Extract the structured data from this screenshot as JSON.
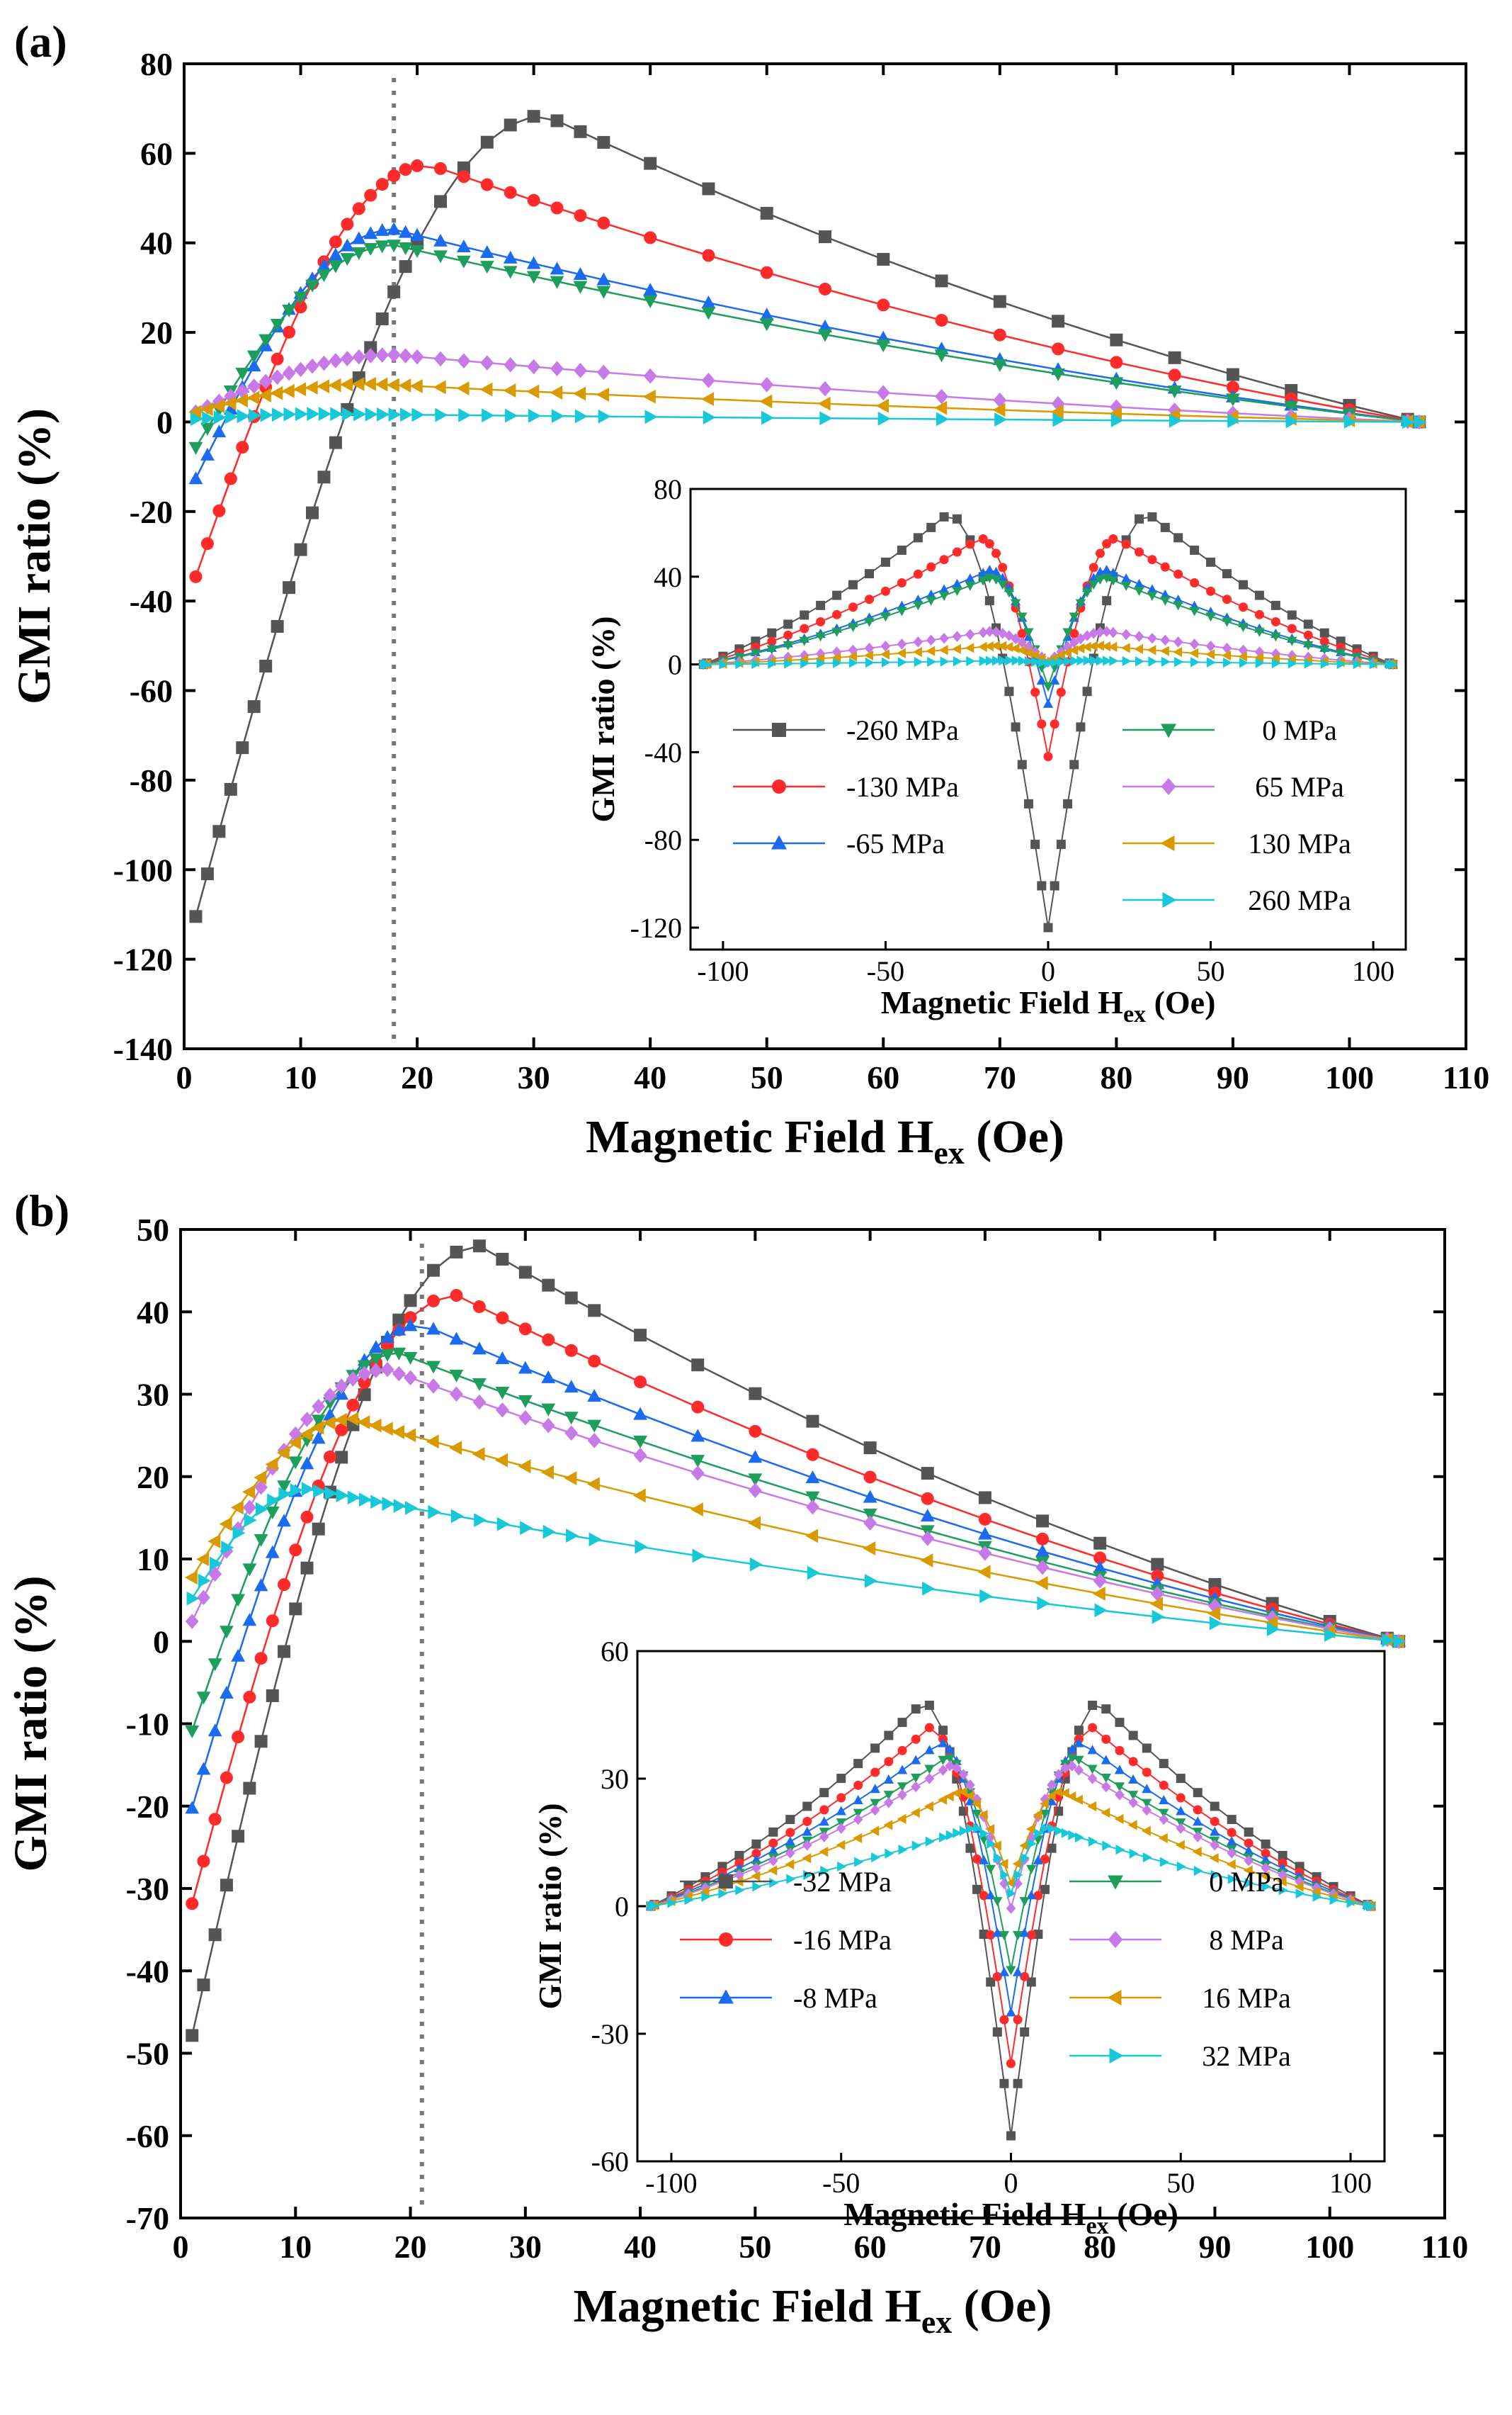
{
  "chart_data": [
    {
      "panel_label": "(a)",
      "type": "line",
      "xlabel": "Magnetic Field H",
      "xlabel_sub": "ex",
      "xlabel_unit": "(Oe)",
      "ylabel": "GMI ratio (%)",
      "xlim": [
        0,
        110
      ],
      "ylim": [
        -140,
        80
      ],
      "x_ticks": [
        "0",
        "10",
        "20",
        "30",
        "40",
        "50",
        "60",
        "70",
        "80",
        "90",
        "100",
        "110"
      ],
      "y_ticks": [
        "80",
        "60",
        "40",
        "20",
        "0",
        "-20",
        "-40",
        "-60",
        "-80",
        "-100",
        "-120",
        "-140"
      ],
      "vline_x": 18,
      "series": [
        {
          "name": "-260 MPa",
          "color": "#555555",
          "marker": "square",
          "peak_x": 31,
          "peak_y": 68.5,
          "start_y": -120
        },
        {
          "name": "-130 MPa",
          "color": "#ff2a2a",
          "marker": "circle",
          "peak_x": 21,
          "peak_y": 57.5,
          "start_y": -42
        },
        {
          "name": "-65 MPa",
          "color": "#1a6bf0",
          "marker": "triangle-up",
          "peak_x": 18,
          "peak_y": 43,
          "start_y": -18
        },
        {
          "name": "0 MPa",
          "color": "#1d9e5b",
          "marker": "triangle-down",
          "peak_x": 18,
          "peak_y": 39.5,
          "start_y": -10
        },
        {
          "name": "65 MPa",
          "color": "#c879e8",
          "marker": "diamond",
          "peak_x": 18,
          "peak_y": 15,
          "start_y": 1
        },
        {
          "name": "130 MPa",
          "color": "#d99a00",
          "marker": "triangle-left",
          "peak_x": 16,
          "peak_y": 8.5,
          "start_y": 1.5
        },
        {
          "name": "260 MPa",
          "color": "#17c8d8",
          "marker": "triangle-right",
          "peak_x": 12,
          "peak_y": 1.8,
          "start_y": 0.5
        }
      ],
      "inset": {
        "xlabel": "Magnetic Field H",
        "xlabel_sub": "ex",
        "xlabel_unit": "(Oe)",
        "ylabel": "GMI ratio (%)",
        "xlim": [
          -110,
          110
        ],
        "ylim": [
          -130,
          80
        ],
        "x_ticks": [
          "-100",
          "-50",
          "0",
          "50",
          "100"
        ],
        "y_ticks": [
          "80",
          "40",
          "0",
          "-40",
          "-80",
          "-120"
        ]
      }
    },
    {
      "panel_label": "(b)",
      "type": "line",
      "xlabel": "Magnetic Field H",
      "xlabel_sub": "ex",
      "xlabel_unit": "(Oe)",
      "ylabel": "GMI ratio (%)",
      "xlim": [
        0,
        110
      ],
      "ylim": [
        -70,
        50
      ],
      "x_ticks": [
        "0",
        "10",
        "20",
        "30",
        "40",
        "50",
        "60",
        "70",
        "80",
        "90",
        "100",
        "110"
      ],
      "y_ticks": [
        "50",
        "40",
        "30",
        "20",
        "10",
        "0",
        "-10",
        "-20",
        "-30",
        "-40",
        "-50",
        "-60",
        "-70"
      ],
      "vline_x": 21,
      "series": [
        {
          "name": "-32 MPa",
          "color": "#555555",
          "marker": "square",
          "peak_x": 26,
          "peak_y": 48,
          "start_y": -54
        },
        {
          "name": "-16 MPa",
          "color": "#ff2a2a",
          "marker": "circle",
          "peak_x": 24,
          "peak_y": 42,
          "start_y": -37
        },
        {
          "name": "-8 MPa",
          "color": "#1a6bf0",
          "marker": "triangle-up",
          "peak_x": 21,
          "peak_y": 38.5,
          "start_y": -25
        },
        {
          "name": "0 MPa",
          "color": "#1d9e5b",
          "marker": "triangle-down",
          "peak_x": 19,
          "peak_y": 35,
          "start_y": -15
        },
        {
          "name": "8 MPa",
          "color": "#c879e8",
          "marker": "diamond",
          "peak_x": 18,
          "peak_y": 33,
          "start_y": -0.5
        },
        {
          "name": "16 MPa",
          "color": "#d99a00",
          "marker": "triangle-left",
          "peak_x": 15,
          "peak_y": 27,
          "start_y": 5.5
        },
        {
          "name": "32 MPa",
          "color": "#17c8d8",
          "marker": "triangle-right",
          "peak_x": 11,
          "peak_y": 18.5,
          "start_y": 3
        }
      ],
      "inset": {
        "xlabel": "Magnetic Field H",
        "xlabel_sub": "ex",
        "xlabel_unit": "(Oe)",
        "ylabel": "GMI ratio (%)",
        "xlim": [
          -110,
          110
        ],
        "ylim": [
          -60,
          60
        ],
        "x_ticks": [
          "-100",
          "-50",
          "0",
          "50",
          "100"
        ],
        "y_ticks": [
          "60",
          "30",
          "0",
          "-30",
          "-60"
        ]
      }
    }
  ]
}
